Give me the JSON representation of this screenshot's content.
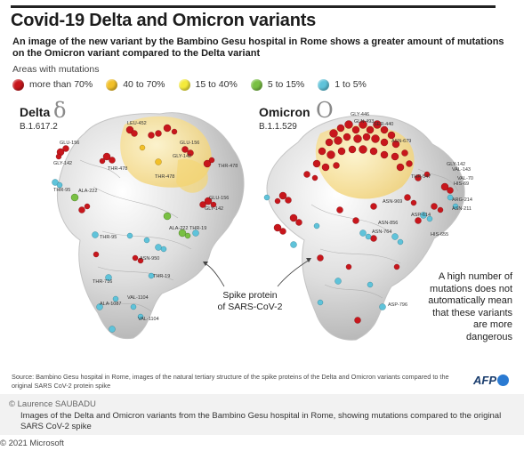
{
  "title": "Covid-19 Delta and Omicron variants",
  "subtitle": "An image of the new variant by the Bambino Gesu hospital in Rome shows a greater amount of mutations on the Omicron variant compared to the Delta variant",
  "legend": {
    "heading": "Areas with mutations",
    "items": [
      {
        "label": "more than 70%",
        "color": "#c8161c"
      },
      {
        "label": "40 to 70%",
        "color": "#f2c029"
      },
      {
        "label": "15 to 40%",
        "color": "#f4ea3a"
      },
      {
        "label": "5 to 15%",
        "color": "#79c043"
      },
      {
        "label": "1 to 5%",
        "color": "#5fc3da"
      }
    ]
  },
  "delta": {
    "name": "Delta",
    "glyph": "δ",
    "code": "B.1.617.2"
  },
  "omicron": {
    "name": "Omicron",
    "glyph": "O",
    "code": "B.1.1.529"
  },
  "spike_label_1": "Spike protein",
  "spike_label_2": "of SARS-CoV-2",
  "callout": "A high number of mutations does not automatically mean that these variants are more dangerous",
  "source": "Source: Bambino Gesu hospital in Rome, images of the natural tertiary structure of the spike proteins of the Delta and Omicron variants compared to the original SARS CoV-2 protein spike",
  "agency": "AFP",
  "credit": "© Laurence SAUBADU",
  "caption": "Images of the Delta and Omicron variants from the Bambino Gesu hospital in Rome, showing mutations compared to the original SARS CoV-2 spike",
  "copyright": "© 2021 Microsoft",
  "delta_labels": [
    "GLU-156",
    "GLY-142",
    "THR-478",
    "LEU-452",
    "GLU-156",
    "GLY-142",
    "THR-478",
    "THR-95",
    "ALA-222",
    "THR-478",
    "GLU-156",
    "GLY-142",
    "THR-95",
    "ALA-222",
    "THR-19",
    "ASN-950",
    "THR-716",
    "THR-19",
    "VAL-1104",
    "ALA-1087",
    "VAL-1104"
  ],
  "omicron_labels": [
    "GLY-446",
    "GLN-493",
    "SER-440",
    "ASN-679",
    "GLY-142",
    "VAL-143",
    "THR-547",
    "VAL-70",
    "HIS-69",
    "ARG-214",
    "ASN-211",
    "ASP-614",
    "HIS-655",
    "ASN-969",
    "ASN-764",
    "ASN-856",
    "ASP-796"
  ]
}
